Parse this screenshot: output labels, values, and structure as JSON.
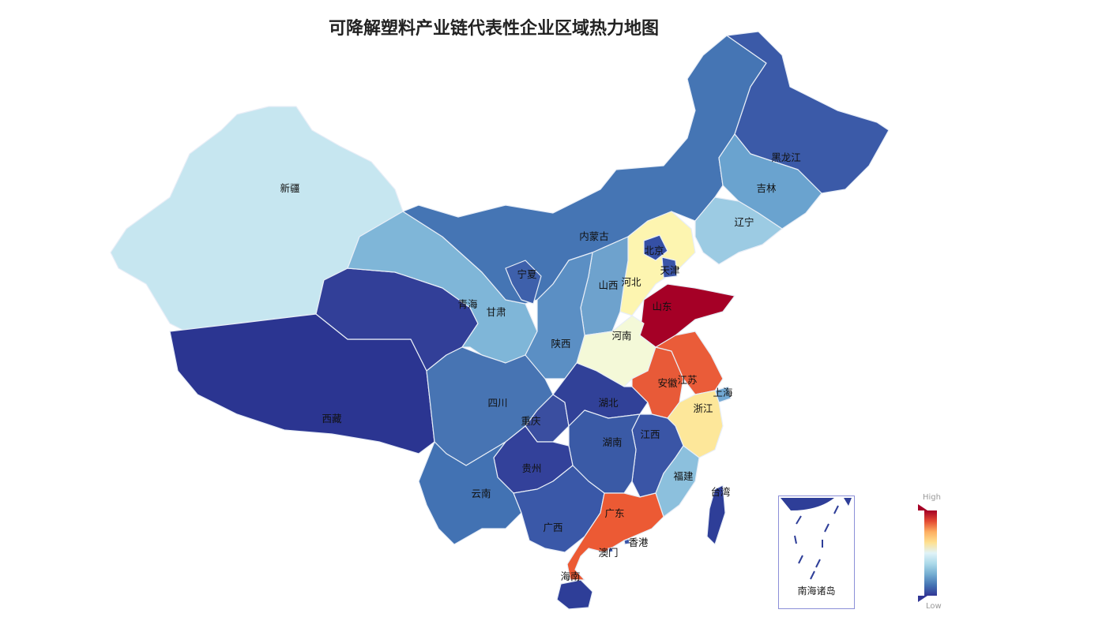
{
  "title": "可降解塑料产业链代表性企业区域热力地图",
  "legend": {
    "high": "High",
    "low": "Low",
    "colors": [
      "#a50026",
      "#e34a33",
      "#fdae61",
      "#fee090",
      "#e0f3f8",
      "#abd9e9",
      "#74add1",
      "#4575b4",
      "#313695"
    ]
  },
  "inset": {
    "label": "南海诸岛"
  },
  "provinces": [
    {
      "name": "新疆",
      "color": "#c6e6f0"
    },
    {
      "name": "西藏",
      "color": "#2b3591"
    },
    {
      "name": "青海",
      "color": "#323f98"
    },
    {
      "name": "甘肃",
      "color": "#7fb6d8"
    },
    {
      "name": "内蒙古",
      "color": "#4575b4"
    },
    {
      "name": "黑龙江",
      "color": "#3b5aa8"
    },
    {
      "name": "吉林",
      "color": "#6aa3cf"
    },
    {
      "name": "辽宁",
      "color": "#9ccbe3"
    },
    {
      "name": "河北",
      "color": "#fdf5b0"
    },
    {
      "name": "北京",
      "color": "#3550a5"
    },
    {
      "name": "天津",
      "color": "#3a55a8"
    },
    {
      "name": "山西",
      "color": "#6ea2cd"
    },
    {
      "name": "山东",
      "color": "#a50026"
    },
    {
      "name": "河南",
      "color": "#f4f9d8"
    },
    {
      "name": "陕西",
      "color": "#5b8fc4"
    },
    {
      "name": "宁夏",
      "color": "#3e60ab"
    },
    {
      "name": "四川",
      "color": "#4774b3"
    },
    {
      "name": "重庆",
      "color": "#3a4ea0"
    },
    {
      "name": "湖北",
      "color": "#314198"
    },
    {
      "name": "安徽",
      "color": "#e85a38"
    },
    {
      "name": "江苏",
      "color": "#ea5c39"
    },
    {
      "name": "上海",
      "color": "#72a8d3"
    },
    {
      "name": "浙江",
      "color": "#fde79a"
    },
    {
      "name": "江西",
      "color": "#3a55a6"
    },
    {
      "name": "湖南",
      "color": "#3a5aa6"
    },
    {
      "name": "福建",
      "color": "#8cc0dd"
    },
    {
      "name": "贵州",
      "color": "#33419a"
    },
    {
      "name": "云南",
      "color": "#4272b3"
    },
    {
      "name": "广西",
      "color": "#3a58a8"
    },
    {
      "name": "广东",
      "color": "#ec5a34"
    },
    {
      "name": "海南",
      "color": "#2e3e98"
    },
    {
      "name": "台湾",
      "color": "#2e3e98"
    },
    {
      "name": "香港",
      "color": "#3a55a8"
    },
    {
      "name": "澳门",
      "color": "#3a55a8"
    }
  ]
}
